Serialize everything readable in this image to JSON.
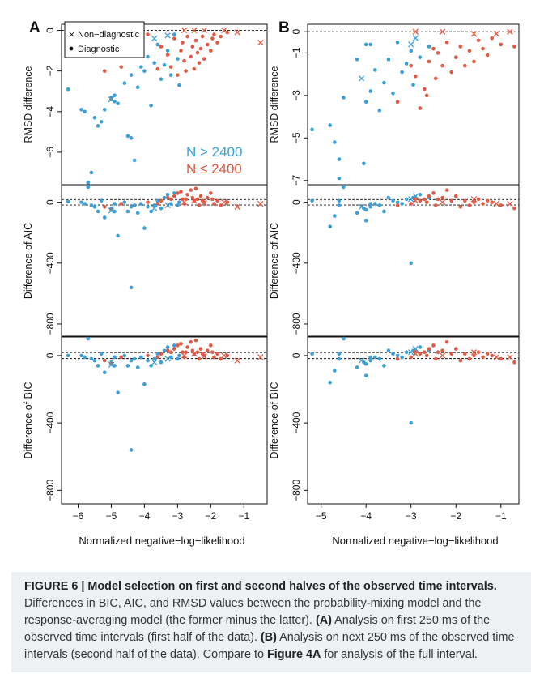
{
  "colors": {
    "large_n": "#3b9fd8",
    "small_n": "#e05a44",
    "axis": "#111111",
    "caption_bg": "#eef1f4"
  },
  "figure": {
    "panel_letters": [
      "A",
      "B"
    ],
    "legend": {
      "nondiagnostic_label": "Non−diagnostic",
      "diagnostic_label": "Diagnostic",
      "nondiagnostic_marker": "x-marker",
      "diagnostic_marker": "dot-marker",
      "n_large_label": "N > 2400",
      "n_small_label": "N ≤ 2400"
    },
    "xlabel": "Normalized negative−log−likelihood"
  },
  "chart_data": [
    {
      "panel": "A",
      "type": "scatter",
      "rows": [
        {
          "ylabel": "RMSD difference",
          "ylim": [
            -7.6,
            0.3
          ],
          "yticks": [
            0,
            -2,
            -4,
            -6
          ]
        },
        {
          "ylabel": "Difference of AIC",
          "ylim": [
            -880,
            110
          ],
          "yticks": [
            0,
            -400,
            -800
          ]
        },
        {
          "ylabel": "Difference of BIC",
          "ylim": [
            -880,
            110
          ],
          "yticks": [
            0,
            -400,
            -800
          ]
        }
      ],
      "xlim": [
        -6.5,
        -0.3
      ],
      "xticks": [
        -6,
        -5,
        -4,
        -3,
        -2,
        -1
      ],
      "series": [
        {
          "name": "N > 2400",
          "color": "large_n",
          "points": [
            [
              -6.3,
              -2.9,
              5,
              0
            ],
            [
              -5.9,
              -3.9,
              0,
              0
            ],
            [
              -5.8,
              -4,
              -10,
              -10
            ],
            [
              -5.6,
              -7,
              -20,
              -20
            ],
            [
              -5.7,
              -7.5,
              100,
              100
            ],
            [
              -5.5,
              -4.3,
              -30,
              -30
            ],
            [
              -5.4,
              -4.7,
              -60,
              -60
            ],
            [
              -5.2,
              -3.9,
              -100,
              -100
            ],
            [
              -5.3,
              -4.5,
              10,
              10
            ],
            [
              -5.0,
              -3.3,
              -40,
              -40
            ],
            [
              -4.9,
              -3.2,
              -60,
              -60
            ],
            [
              -4.8,
              -3.6,
              -220,
              -220
            ],
            [
              -4.5,
              -5.2,
              -60,
              -60
            ],
            [
              -4.4,
              -5.3,
              -560,
              -560
            ],
            [
              -4.3,
              -6.4,
              -20,
              -20
            ],
            [
              -4.6,
              -2.6,
              0,
              0
            ],
            [
              -4.4,
              -2.2,
              -30,
              -30
            ],
            [
              -4.2,
              -2.8,
              -70,
              -70
            ],
            [
              -4.0,
              -2.0,
              -170,
              -170
            ],
            [
              -3.9,
              -1.3,
              -30,
              -30
            ],
            [
              -3.8,
              -3.7,
              -60,
              -60
            ],
            [
              -3.7,
              -1.6,
              -20,
              -20
            ],
            [
              -3.6,
              -0.7,
              10,
              10
            ],
            [
              -3.5,
              -2.4,
              -40,
              -40
            ],
            [
              -3.4,
              -1.7,
              30,
              30
            ],
            [
              -3.3,
              -1.0,
              50,
              50
            ],
            [
              -3.2,
              -2.2,
              -10,
              -10
            ],
            [
              -3.1,
              -0.2,
              60,
              60
            ],
            [
              -3.0,
              -1.4,
              -20,
              -20
            ],
            [
              -2.95,
              -2.7,
              0,
              0
            ],
            [
              -4.1,
              -1.8,
              -10,
              -10
            ],
            [
              -4.9,
              -3.5,
              -10,
              -10
            ]
          ]
        },
        {
          "name": "N ≤ 2400",
          "color": "small_n",
          "points": [
            [
              -5.2,
              -2.0,
              -30,
              -30
            ],
            [
              -5.0,
              -3.4,
              -50,
              -50
            ],
            [
              -4.7,
              -1.8,
              -10,
              -10
            ],
            [
              -3.9,
              -0.2,
              0,
              0
            ],
            [
              -3.5,
              -0.8,
              10,
              10
            ],
            [
              -3.3,
              -1.2,
              30,
              30
            ],
            [
              -3.2,
              -1.8,
              20,
              20
            ],
            [
              -3.1,
              -0.4,
              40,
              40
            ],
            [
              -3.0,
              -2.2,
              60,
              60
            ],
            [
              -2.9,
              -1.0,
              70,
              70
            ],
            [
              -2.85,
              -0.6,
              20,
              20
            ],
            [
              -2.8,
              -1.5,
              -10,
              -10
            ],
            [
              -2.7,
              -0.3,
              50,
              50
            ],
            [
              -2.6,
              -1.3,
              80,
              80
            ],
            [
              -2.55,
              -0.8,
              30,
              30
            ],
            [
              -2.5,
              -1.9,
              10,
              10
            ],
            [
              -2.45,
              -0.5,
              90,
              90
            ],
            [
              -2.4,
              -1.1,
              20,
              20
            ],
            [
              -2.35,
              -1.6,
              -20,
              -20
            ],
            [
              -2.3,
              -0.9,
              40,
              40
            ],
            [
              -2.25,
              -0.3,
              10,
              10
            ],
            [
              -2.2,
              -1.4,
              0,
              0
            ],
            [
              -2.1,
              -0.7,
              30,
              30
            ],
            [
              -2.0,
              -1.0,
              60,
              60
            ],
            [
              -1.95,
              -0.4,
              20,
              20
            ],
            [
              -1.9,
              -0.2,
              -10,
              -10
            ],
            [
              -1.8,
              -0.6,
              10,
              10
            ],
            [
              -1.7,
              -0.3,
              -20,
              -20
            ],
            [
              -1.5,
              -0.1,
              0,
              0
            ],
            [
              -3.6,
              -1.9,
              -10,
              -10
            ],
            [
              -2.75,
              -2.0,
              20,
              20
            ]
          ]
        }
      ],
      "nondiagnostic_points": [
        [
          -3.7,
          -0.4,
          -40,
          -40,
          "large_n"
        ],
        [
          -3.3,
          -0.25,
          -20,
          -20,
          "large_n"
        ],
        [
          -5.0,
          -3.4,
          -55,
          -55,
          "large_n"
        ],
        [
          -2.8,
          0,
          0,
          0,
          "small_n"
        ],
        [
          -2.5,
          0,
          10,
          10,
          "small_n"
        ],
        [
          -2.2,
          0,
          -5,
          -5,
          "small_n"
        ],
        [
          -1.6,
          0,
          0,
          0,
          "small_n"
        ],
        [
          -1.2,
          -0.1,
          -30,
          -30,
          "small_n"
        ],
        [
          -0.5,
          -0.6,
          -10,
          -10,
          "small_n"
        ]
      ]
    },
    {
      "panel": "B",
      "type": "scatter",
      "rows": [
        {
          "ylabel": "RMSD difference",
          "ylim": [
            -7.2,
            0.35
          ],
          "yticks": [
            0,
            -1,
            -3,
            -5,
            -7
          ]
        },
        {
          "ylabel": "Difference of AIC",
          "ylim": [
            -880,
            110
          ],
          "yticks": [
            0,
            -400,
            -800
          ]
        },
        {
          "ylabel": "Difference of BIC",
          "ylim": [
            -880,
            110
          ],
          "yticks": [
            0,
            -400,
            -800
          ]
        }
      ],
      "xlim": [
        -5.3,
        -0.6
      ],
      "xticks": [
        -5,
        -4,
        -3,
        -2,
        -1
      ],
      "series": [
        {
          "name": "N > 2400",
          "color": "large_n",
          "points": [
            [
              -5.2,
              -4.6,
              10,
              10
            ],
            [
              -4.8,
              -4.4,
              -160,
              -160
            ],
            [
              -4.7,
              -5.2,
              -90,
              -90
            ],
            [
              -4.6,
              -6.0,
              10,
              10
            ],
            [
              -4.6,
              -6.9,
              -20,
              -20
            ],
            [
              -4.5,
              -3.1,
              100,
              100
            ],
            [
              -4.2,
              -1.3,
              -70,
              -70
            ],
            [
              -4.0,
              -0.6,
              -120,
              -120
            ],
            [
              -3.9,
              -2.8,
              -30,
              -30
            ],
            [
              -3.8,
              -1.8,
              -10,
              -10
            ],
            [
              -4.0,
              -3.3,
              -50,
              -50
            ],
            [
              -3.7,
              -3.7,
              -20,
              -20
            ],
            [
              -3.6,
              -2.4,
              -60,
              -60
            ],
            [
              -3.5,
              -1.3,
              30,
              30
            ],
            [
              -3.4,
              -2.9,
              10,
              10
            ],
            [
              -3.3,
              -0.5,
              0,
              0
            ],
            [
              -3.2,
              -1.9,
              -10,
              -10
            ],
            [
              -3.1,
              -1.5,
              20,
              20
            ],
            [
              -3.0,
              -0.9,
              -400,
              -400
            ],
            [
              -2.95,
              -2.5,
              30,
              30
            ],
            [
              -2.8,
              -1.2,
              50,
              50
            ],
            [
              -2.6,
              -0.7,
              30,
              30
            ],
            [
              -4.05,
              -6.2,
              -40,
              -40
            ],
            [
              -3.9,
              -0.6,
              -10,
              -10
            ]
          ]
        },
        {
          "name": "N ≤ 2400",
          "color": "small_n",
          "points": [
            [
              -3.0,
              -1.6,
              -10,
              -10
            ],
            [
              -2.9,
              -2.1,
              30,
              30
            ],
            [
              -2.8,
              -3.6,
              10,
              10
            ],
            [
              -2.7,
              -2.7,
              20,
              20
            ],
            [
              -2.6,
              -1.4,
              40,
              40
            ],
            [
              -2.5,
              -0.8,
              60,
              60
            ],
            [
              -2.45,
              -2.2,
              -20,
              -20
            ],
            [
              -2.4,
              -1.0,
              20,
              20
            ],
            [
              -2.3,
              -1.6,
              30,
              30
            ],
            [
              -2.2,
              -0.5,
              80,
              80
            ],
            [
              -2.1,
              -1.9,
              10,
              10
            ],
            [
              -2.0,
              -1.2,
              40,
              40
            ],
            [
              -1.9,
              -0.7,
              -30,
              -30
            ],
            [
              -1.8,
              -1.6,
              10,
              10
            ],
            [
              -1.7,
              -0.9,
              -20,
              -20
            ],
            [
              -1.6,
              -1.4,
              0,
              0
            ],
            [
              -1.5,
              -0.4,
              20,
              20
            ],
            [
              -1.4,
              -0.8,
              -10,
              -10
            ],
            [
              -1.3,
              -1.1,
              10,
              10
            ],
            [
              -1.2,
              -0.3,
              0,
              0
            ],
            [
              -1.0,
              -0.6,
              -20,
              -20
            ],
            [
              -0.7,
              -0.7,
              -40,
              -40
            ],
            [
              -3.3,
              -3.3,
              -20,
              -20
            ],
            [
              -2.65,
              -3.0,
              0,
              0
            ]
          ]
        }
      ],
      "nondiagnostic_points": [
        [
          -4.1,
          -2.2,
          -30,
          -30,
          "large_n"
        ],
        [
          -3.0,
          -0.6,
          20,
          20,
          "large_n"
        ],
        [
          -2.9,
          -0.3,
          40,
          40,
          "large_n"
        ],
        [
          -2.9,
          0,
          10,
          10,
          "small_n"
        ],
        [
          -2.3,
          0,
          0,
          0,
          "small_n"
        ],
        [
          -1.6,
          -0.1,
          20,
          20,
          "small_n"
        ],
        [
          -1.1,
          -0.1,
          -10,
          -10,
          "small_n"
        ],
        [
          -0.8,
          0,
          -10,
          -10,
          "small_n"
        ]
      ]
    }
  ],
  "caption": {
    "title": "FIGURE 6 | Model selection on first and second halves of the observed time intervals.",
    "text1": " Differences in BIC, AIC, and RMSD values between the probability-mixing model and the response-averaging model (the former minus the latter). ",
    "label_a": "(A)",
    "text2": " Analysis on first 250 ms of the observed time intervals (first half of the data). ",
    "label_b": "(B)",
    "text3": " Analysis on next 250 ms of the observed time intervals (second half of the data). Compare to ",
    "figref": "Figure 4A",
    "text4": " for analysis of the full interval."
  }
}
